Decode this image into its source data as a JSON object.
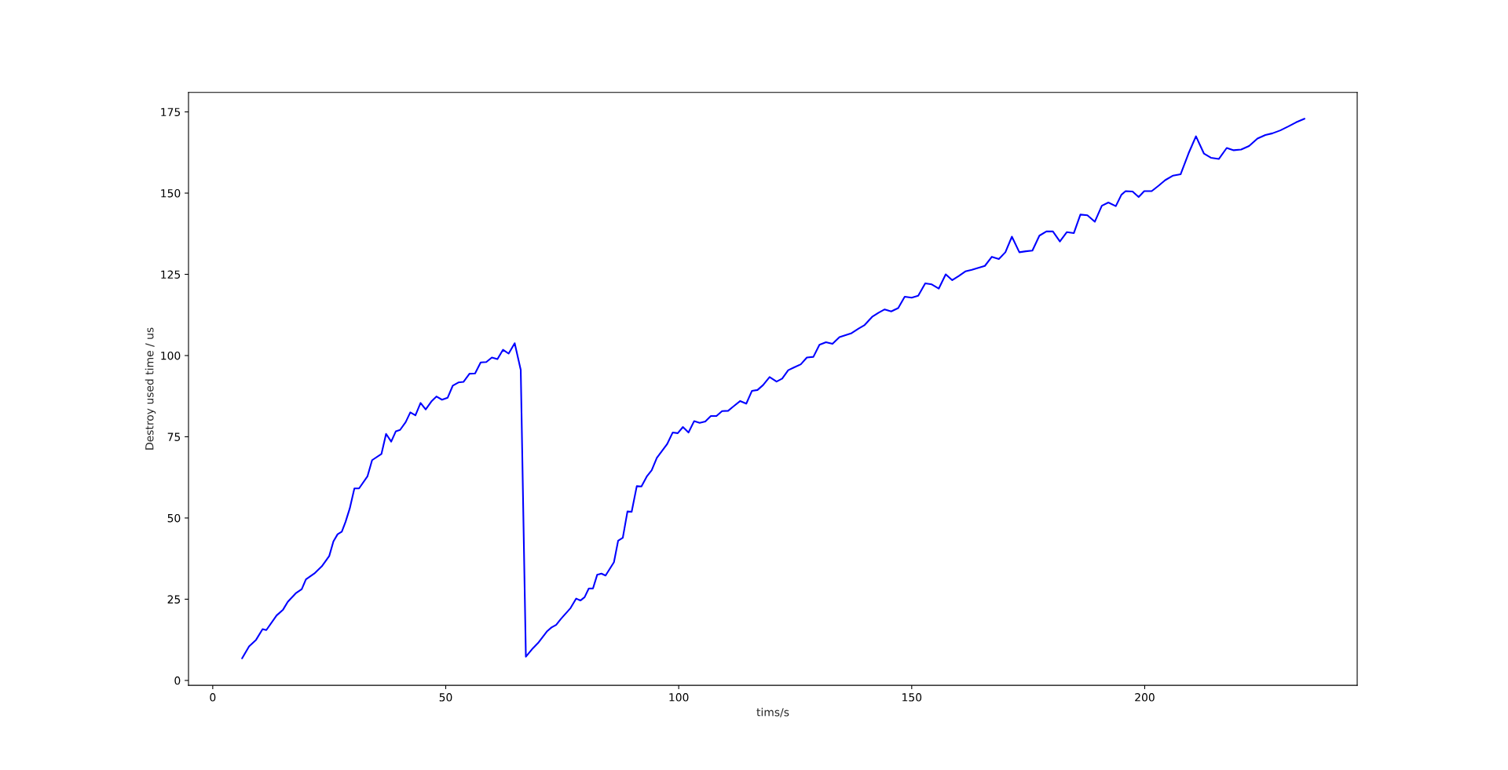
{
  "chart_data": {
    "type": "line",
    "xlabel": "tims/s",
    "ylabel": "Destroy used time / us",
    "xlim": [
      -5.2,
      245.6
    ],
    "ylim": [
      -1.5,
      181
    ],
    "xticks": [
      0,
      50,
      100,
      150,
      200
    ],
    "yticks": [
      0,
      25,
      50,
      75,
      100,
      125,
      150,
      175
    ],
    "grid": false,
    "line_style": "solid",
    "series": [
      {
        "color": "#0000ff",
        "x": [
          6.3,
          7.8,
          9.3,
          10.7,
          11.5,
          13.7,
          15.1,
          16.1,
          17.8,
          19.1,
          20.0,
          21.8,
          23.4,
          25.0,
          25.9,
          26.8,
          27.7,
          28.5,
          29.4,
          30.4,
          31.4,
          33.2,
          34.2,
          36.2,
          37.2,
          38.3,
          39.3,
          40.2,
          41.4,
          42.4,
          43.5,
          44.6,
          45.7,
          47.0,
          48.0,
          49.2,
          50.4,
          51.5,
          52.7,
          53.8,
          55.1,
          56.3,
          57.5,
          58.7,
          59.9,
          61.1,
          62.3,
          63.5,
          64.8,
          66.1,
          67.2,
          68.7,
          69.8,
          71.8,
          72.7,
          73.7,
          74.7,
          76.8,
          78.0,
          78.9,
          79.8,
          80.7,
          81.6,
          82.5,
          83.4,
          84.3,
          86.1,
          87.0,
          88.0,
          89.0,
          89.9,
          91.0,
          92.0,
          93.2,
          94.2,
          95.3,
          97.5,
          98.7,
          99.8,
          100.9,
          102.1,
          103.3,
          104.5,
          105.7,
          106.9,
          108.1,
          109.3,
          110.6,
          111.8,
          113.2,
          114.5,
          115.7,
          116.9,
          118.1,
          119.5,
          121.0,
          122.2,
          123.5,
          124.7,
          126.2,
          127.5,
          128.9,
          130.2,
          131.6,
          133.0,
          134.5,
          135.8,
          137.1,
          138.6,
          139.9,
          141.5,
          142.9,
          144.2,
          145.6,
          147.1,
          148.5,
          150.0,
          151.4,
          152.9,
          154.3,
          155.8,
          157.3,
          158.7,
          160.1,
          161.5,
          162.9,
          164.3,
          165.7,
          167.2,
          168.7,
          170.1,
          171.5,
          173.1,
          174.5,
          175.9,
          177.4,
          178.9,
          180.3,
          181.8,
          183.3,
          184.8,
          186.2,
          187.7,
          189.3,
          190.8,
          192.2,
          193.8,
          195.0,
          195.9,
          197.4,
          198.7,
          199.9,
          201.5,
          203.0,
          204.4,
          206.1,
          207.7,
          209.4,
          211.0,
          212.7,
          214.2,
          215.9,
          217.6,
          219.1,
          220.7,
          222.4,
          224.2,
          225.9,
          227.4,
          229.1,
          230.8,
          232.5,
          234.3
        ],
        "values": [
          6.8,
          10.5,
          12.5,
          15.8,
          15.5,
          20.0,
          21.8,
          24.2,
          26.8,
          28.1,
          31.1,
          32.9,
          35.1,
          38.3,
          42.8,
          45.0,
          45.8,
          48.8,
          52.9,
          59.1,
          59.1,
          62.8,
          67.8,
          69.7,
          75.9,
          73.5,
          76.7,
          77.1,
          79.5,
          82.5,
          81.6,
          85.4,
          83.4,
          86.0,
          87.4,
          86.4,
          87.0,
          90.7,
          91.7,
          91.9,
          94.4,
          94.5,
          97.9,
          98.0,
          99.4,
          98.9,
          101.8,
          100.6,
          103.8,
          95.6,
          7.3,
          9.9,
          11.5,
          15.2,
          16.3,
          17.1,
          18.9,
          22.3,
          25.2,
          24.6,
          25.6,
          28.3,
          28.3,
          32.5,
          32.9,
          32.3,
          36.4,
          43.0,
          43.9,
          52.0,
          51.9,
          59.8,
          59.7,
          62.9,
          64.7,
          68.5,
          72.7,
          76.3,
          76.1,
          78.0,
          76.3,
          79.8,
          79.3,
          79.7,
          81.4,
          81.4,
          82.9,
          83.0,
          84.4,
          86.0,
          85.2,
          89.1,
          89.4,
          90.9,
          93.4,
          92.0,
          92.9,
          95.5,
          96.3,
          97.3,
          99.4,
          99.6,
          103.3,
          104.1,
          103.6,
          105.7,
          106.3,
          106.9,
          108.3,
          109.4,
          111.9,
          113.2,
          114.2,
          113.6,
          114.6,
          118.1,
          117.8,
          118.4,
          122.2,
          121.9,
          120.6,
          125.0,
          123.2,
          124.5,
          125.9,
          126.4,
          127.0,
          127.6,
          130.4,
          129.7,
          131.8,
          136.6,
          131.8,
          132.1,
          132.3,
          136.9,
          138.2,
          138.2,
          135.1,
          138.0,
          137.7,
          143.4,
          143.2,
          141.2,
          146.1,
          147.1,
          146.0,
          149.5,
          150.6,
          150.5,
          148.8,
          150.6,
          150.6,
          152.3,
          154.0,
          155.4,
          155.8,
          162.2,
          167.5,
          162.2,
          160.9,
          160.5,
          163.9,
          163.2,
          163.4,
          164.5,
          166.8,
          167.9,
          168.4,
          169.3,
          170.5,
          171.8,
          172.9
        ]
      }
    ]
  }
}
